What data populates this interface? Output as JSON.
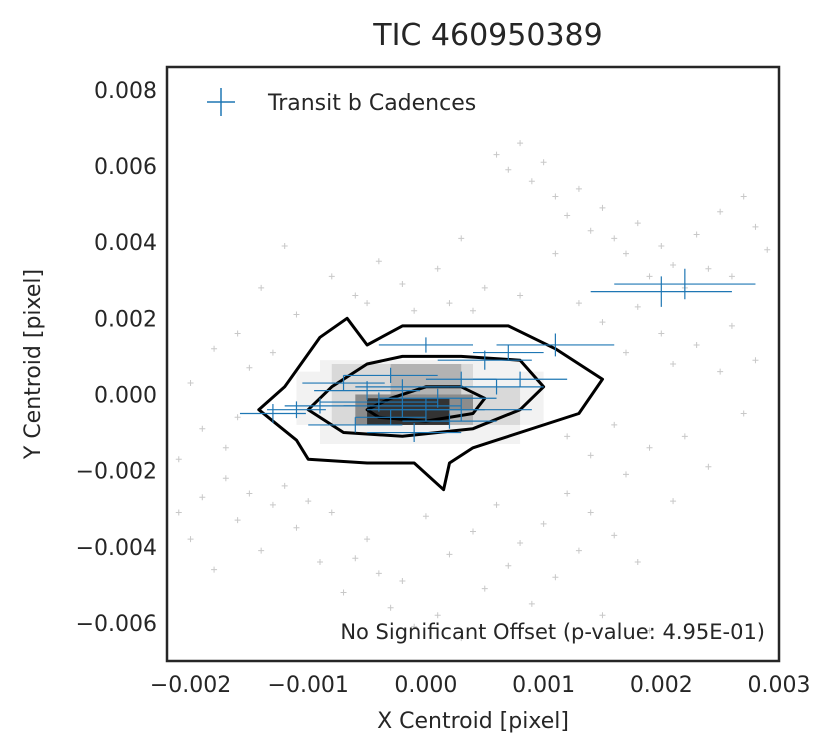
{
  "chart_data": {
    "type": "scatter",
    "title": "TIC 460950389",
    "xlabel": "X Centroid [pixel]",
    "ylabel": "Y Centroid [pixel]",
    "xlim": [
      -0.0022,
      0.003
    ],
    "ylim": [
      -0.007,
      0.0086
    ],
    "xticks": [
      -0.002,
      -0.001,
      0.0,
      0.001,
      0.002,
      0.003
    ],
    "xtick_labels": [
      "−0.002",
      "−0.001",
      "0.000",
      "0.001",
      "0.002",
      "0.003"
    ],
    "yticks": [
      0.008,
      0.006,
      0.004,
      0.002,
      0.0,
      -0.002,
      -0.004,
      -0.006
    ],
    "ytick_labels": [
      "0.008",
      "0.006",
      "0.004",
      "0.002",
      "0.000",
      "−0.002",
      "−0.004",
      "−0.006"
    ],
    "grid": false,
    "legend": {
      "position": "top-left",
      "entries": [
        "Transit b Cadences"
      ]
    },
    "annotation": "No Significant Offset (p-value: 4.95E-01)",
    "colors": {
      "transit": "#1f77b4",
      "background_points": "#c8c8c8",
      "contour": "#000000",
      "density": [
        "#f2f2f2",
        "#d9d9d9",
        "#b3b3b3",
        "#8c8c8c",
        "#333333"
      ]
    },
    "density_contours": [
      [
        [
          -0.00142,
          -0.0004
        ],
        [
          -0.0012,
          0.0002
        ],
        [
          -0.0009,
          0.0015
        ],
        [
          -0.00067,
          0.002
        ],
        [
          -0.0005,
          0.0013
        ],
        [
          -0.0002,
          0.0018
        ],
        [
          0.0001,
          0.0018
        ],
        [
          0.0007,
          0.0018
        ],
        [
          0.0011,
          0.0012
        ],
        [
          0.0015,
          0.0004
        ],
        [
          0.0013,
          -0.0005
        ],
        [
          0.0006,
          -0.0012
        ],
        [
          0.0004,
          -0.0014
        ],
        [
          0.0002,
          -0.0018
        ],
        [
          0.00015,
          -0.0025
        ],
        [
          -0.0001,
          -0.0018
        ],
        [
          -0.0005,
          -0.0018
        ],
        [
          -0.001,
          -0.0017
        ],
        [
          -0.0011,
          -0.0012
        ],
        [
          -0.00142,
          -0.0004
        ]
      ],
      [
        [
          -0.001,
          -0.0004
        ],
        [
          -0.0008,
          0.0002
        ],
        [
          -0.0005,
          0.0008
        ],
        [
          -0.0002,
          0.001
        ],
        [
          0.0003,
          0.001
        ],
        [
          0.0008,
          0.0009
        ],
        [
          0.001,
          0.0002
        ],
        [
          0.0008,
          -0.0004
        ],
        [
          0.0004,
          -0.0009
        ],
        [
          -0.0002,
          -0.0011
        ],
        [
          -0.0007,
          -0.001
        ],
        [
          -0.001,
          -0.0004
        ]
      ],
      [
        [
          -0.0005,
          -0.0004
        ],
        [
          -0.0003,
          -0.0001
        ],
        [
          0.0,
          0.0002
        ],
        [
          0.0003,
          0.0002
        ],
        [
          0.0005,
          -0.0001
        ],
        [
          0.0004,
          -0.0005
        ],
        [
          0.0,
          -0.0007
        ],
        [
          -0.0004,
          -0.0006
        ],
        [
          -0.0005,
          -0.0004
        ]
      ]
    ],
    "density_cells": [
      {
        "x": [
          -0.0011,
          0.001
        ],
        "y": [
          -0.0008,
          0.0006
        ],
        "level": 0
      },
      {
        "x": [
          -0.0009,
          0.0008
        ],
        "y": [
          -0.0013,
          0.0009
        ],
        "level": 0
      },
      {
        "x": [
          -0.0008,
          0.0004
        ],
        "y": [
          -0.0008,
          0.0008
        ],
        "level": 1
      },
      {
        "x": [
          -0.0006,
          0.0008
        ],
        "y": [
          -0.0008,
          0.0002
        ],
        "level": 1
      },
      {
        "x": [
          -0.0005,
          0.0004
        ],
        "y": [
          -0.0008,
          0.0
        ],
        "level": 2
      },
      {
        "x": [
          -0.0003,
          0.0003
        ],
        "y": [
          -0.0004,
          0.0008
        ],
        "level": 2
      },
      {
        "x": [
          -0.0006,
          0.0
        ],
        "y": [
          -0.0008,
          0.0
        ],
        "level": 3
      },
      {
        "x": [
          -0.0002,
          0.0004
        ],
        "y": [
          -0.0004,
          0.0
        ],
        "level": 3
      },
      {
        "x": [
          -0.0005,
          0.0002
        ],
        "y": [
          -0.0008,
          -0.0001
        ],
        "level": 4
      }
    ],
    "background_points": [
      [
        -0.0021,
        -0.0031
      ],
      [
        -0.002,
        -0.0038
      ],
      [
        -0.0019,
        -0.0027
      ],
      [
        -0.0018,
        -0.0046
      ],
      [
        -0.0017,
        -0.0022
      ],
      [
        -0.0016,
        -0.0033
      ],
      [
        -0.0015,
        -0.0026
      ],
      [
        -0.0014,
        -0.0041
      ],
      [
        -0.0013,
        -0.0029
      ],
      [
        -0.0012,
        -0.0024
      ],
      [
        -0.0011,
        -0.0035
      ],
      [
        -0.001,
        -0.0028
      ],
      [
        -0.0009,
        -0.0044
      ],
      [
        -0.0008,
        -0.0031
      ],
      [
        -0.0007,
        -0.0052
      ],
      [
        -0.0006,
        -0.0043
      ],
      [
        -0.0005,
        -0.0038
      ],
      [
        -0.0004,
        -0.0047
      ],
      [
        -0.0003,
        -0.0056
      ],
      [
        -0.0002,
        -0.0049
      ],
      [
        -0.0001,
        -0.0061
      ],
      [
        0.0,
        -0.0032
      ],
      [
        0.0001,
        -0.0058
      ],
      [
        0.0002,
        -0.0042
      ],
      [
        0.0003,
        -0.0064
      ],
      [
        0.0004,
        -0.0036
      ],
      [
        0.0005,
        -0.0051
      ],
      [
        0.0006,
        -0.0029
      ],
      [
        0.0007,
        -0.0045
      ],
      [
        0.0008,
        -0.0039
      ],
      [
        0.0009,
        -0.0055
      ],
      [
        0.001,
        -0.0034
      ],
      [
        0.0011,
        -0.0048
      ],
      [
        0.0012,
        -0.0026
      ],
      [
        0.0013,
        -0.0041
      ],
      [
        0.0014,
        -0.0031
      ],
      [
        0.0015,
        -0.0058
      ],
      [
        0.0016,
        -0.0037
      ],
      [
        0.0017,
        -0.0021
      ],
      [
        0.0018,
        -0.0044
      ],
      [
        0.0019,
        -0.0062
      ],
      [
        0.0021,
        -0.0028
      ],
      [
        0.0006,
        0.0063
      ],
      [
        0.0007,
        0.0059
      ],
      [
        0.0008,
        0.0066
      ],
      [
        0.0009,
        0.0056
      ],
      [
        0.001,
        0.0061
      ],
      [
        0.0011,
        0.0052
      ],
      [
        0.0012,
        0.0047
      ],
      [
        0.0013,
        0.0054
      ],
      [
        0.0014,
        0.0043
      ],
      [
        0.0015,
        0.0049
      ],
      [
        0.0016,
        0.0041
      ],
      [
        0.0017,
        0.0037
      ],
      [
        0.0018,
        0.0045
      ],
      [
        0.0019,
        0.0031
      ],
      [
        0.002,
        0.0039
      ],
      [
        0.0021,
        0.0034
      ],
      [
        0.0022,
        0.0028
      ],
      [
        0.0023,
        0.0042
      ],
      [
        0.0024,
        0.0033
      ],
      [
        0.0025,
        0.0048
      ],
      [
        0.0026,
        0.0031
      ],
      [
        0.0027,
        0.0052
      ],
      [
        0.0028,
        0.0044
      ],
      [
        0.0029,
        0.0038
      ],
      [
        0.0011,
        0.0037
      ],
      [
        0.0013,
        0.0024
      ],
      [
        0.0015,
        0.0019
      ],
      [
        0.0017,
        0.0011
      ],
      [
        0.0018,
        0.0023
      ],
      [
        0.002,
        0.0016
      ],
      [
        0.0021,
        0.0008
      ],
      [
        0.0023,
        0.0013
      ],
      [
        0.0025,
        0.0006
      ],
      [
        0.0026,
        0.0018
      ],
      [
        0.0022,
        -0.0011
      ],
      [
        0.0024,
        -0.0019
      ],
      [
        0.0019,
        -0.0014
      ],
      [
        0.0016,
        -0.0008
      ],
      [
        0.0014,
        -0.0016
      ],
      [
        0.0012,
        -0.0011
      ],
      [
        0.0027,
        -0.0005
      ],
      [
        0.0028,
        0.0009
      ],
      [
        -0.0016,
        0.0016
      ],
      [
        -0.0014,
        0.0028
      ],
      [
        -0.0012,
        0.0039
      ],
      [
        -0.0011,
        0.0021
      ],
      [
        -0.0013,
        0.0011
      ],
      [
        -0.0015,
        0.0007
      ],
      [
        -0.0018,
        0.0012
      ],
      [
        -0.0019,
        -0.0009
      ],
      [
        -0.0017,
        -0.0014
      ],
      [
        -0.002,
        0.0003
      ],
      [
        -0.0021,
        -0.0017
      ],
      [
        -0.0016,
        -0.0006
      ],
      [
        -0.0008,
        0.0031
      ],
      [
        -0.0006,
        0.0026
      ],
      [
        -0.0004,
        0.0035
      ],
      [
        -0.0002,
        0.0029
      ],
      [
        0.0001,
        0.0033
      ],
      [
        0.0003,
        0.0041
      ],
      [
        0.0005,
        0.0028
      ],
      [
        0.0004,
        0.0022
      ],
      [
        0.0002,
        0.0024
      ],
      [
        -0.0001,
        0.0022
      ],
      [
        -0.0005,
        0.0024
      ],
      [
        0.0008,
        0.0026
      ]
    ],
    "transit_points": [
      {
        "x": -0.0013,
        "y": -0.0005,
        "xerr": 0.00028,
        "yerr": 0.00025
      },
      {
        "x": -0.0011,
        "y": -0.0004,
        "xerr": 0.00025,
        "yerr": 0.00022
      },
      {
        "x": -0.0009,
        "y": -0.0003,
        "xerr": 0.0003,
        "yerr": 0.0002
      },
      {
        "x": -0.0007,
        "y": 0.0003,
        "xerr": 0.00035,
        "yerr": 0.0002
      },
      {
        "x": -0.0006,
        "y": -0.0008,
        "xerr": 0.0004,
        "yerr": 0.0002
      },
      {
        "x": -0.0005,
        "y": 0.0001,
        "xerr": 0.00045,
        "yerr": 0.00025
      },
      {
        "x": -0.0004,
        "y": -0.0002,
        "xerr": 0.0005,
        "yerr": 0.00025
      },
      {
        "x": -0.0003,
        "y": 0.0005,
        "xerr": 0.0004,
        "yerr": 0.0002
      },
      {
        "x": -0.0003,
        "y": -0.0006,
        "xerr": 0.0003,
        "yerr": 0.0002
      },
      {
        "x": -0.0002,
        "y": -0.0003,
        "xerr": 0.0005,
        "yerr": 0.0003
      },
      {
        "x": -0.0002,
        "y": 0.0002,
        "xerr": 0.0004,
        "yerr": 0.0002
      },
      {
        "x": -0.0001,
        "y": -0.001,
        "xerr": 0.0004,
        "yerr": 0.00025
      },
      {
        "x": 0.0,
        "y": -0.0004,
        "xerr": 0.0005,
        "yerr": 0.0003
      },
      {
        "x": 0.0,
        "y": 0.0013,
        "xerr": 0.0004,
        "yerr": 0.0002
      },
      {
        "x": 0.0001,
        "y": -0.0001,
        "xerr": 0.0005,
        "yerr": 0.00025
      },
      {
        "x": 0.0002,
        "y": -0.0007,
        "xerr": 0.0004,
        "yerr": 0.0002
      },
      {
        "x": 0.0003,
        "y": 0.0004,
        "xerr": 0.0003,
        "yerr": 0.0002
      },
      {
        "x": 0.0003,
        "y": -0.0004,
        "xerr": 0.0006,
        "yerr": 0.0003
      },
      {
        "x": 0.0005,
        "y": 0.0009,
        "xerr": 0.0004,
        "yerr": 0.00025
      },
      {
        "x": 0.0006,
        "y": 0.0002,
        "xerr": 0.0004,
        "yerr": 0.0002
      },
      {
        "x": 0.0007,
        "y": 0.0011,
        "xerr": 0.0003,
        "yerr": 0.0002
      },
      {
        "x": 0.0008,
        "y": 0.0004,
        "xerr": 0.0004,
        "yerr": 0.0002
      },
      {
        "x": 0.0011,
        "y": 0.0013,
        "xerr": 0.0005,
        "yerr": 0.0003
      },
      {
        "x": 0.002,
        "y": 0.0027,
        "xerr": 0.0006,
        "yerr": 0.0004
      },
      {
        "x": 0.0022,
        "y": 0.0029,
        "xerr": 0.0006,
        "yerr": 0.0004
      }
    ]
  }
}
